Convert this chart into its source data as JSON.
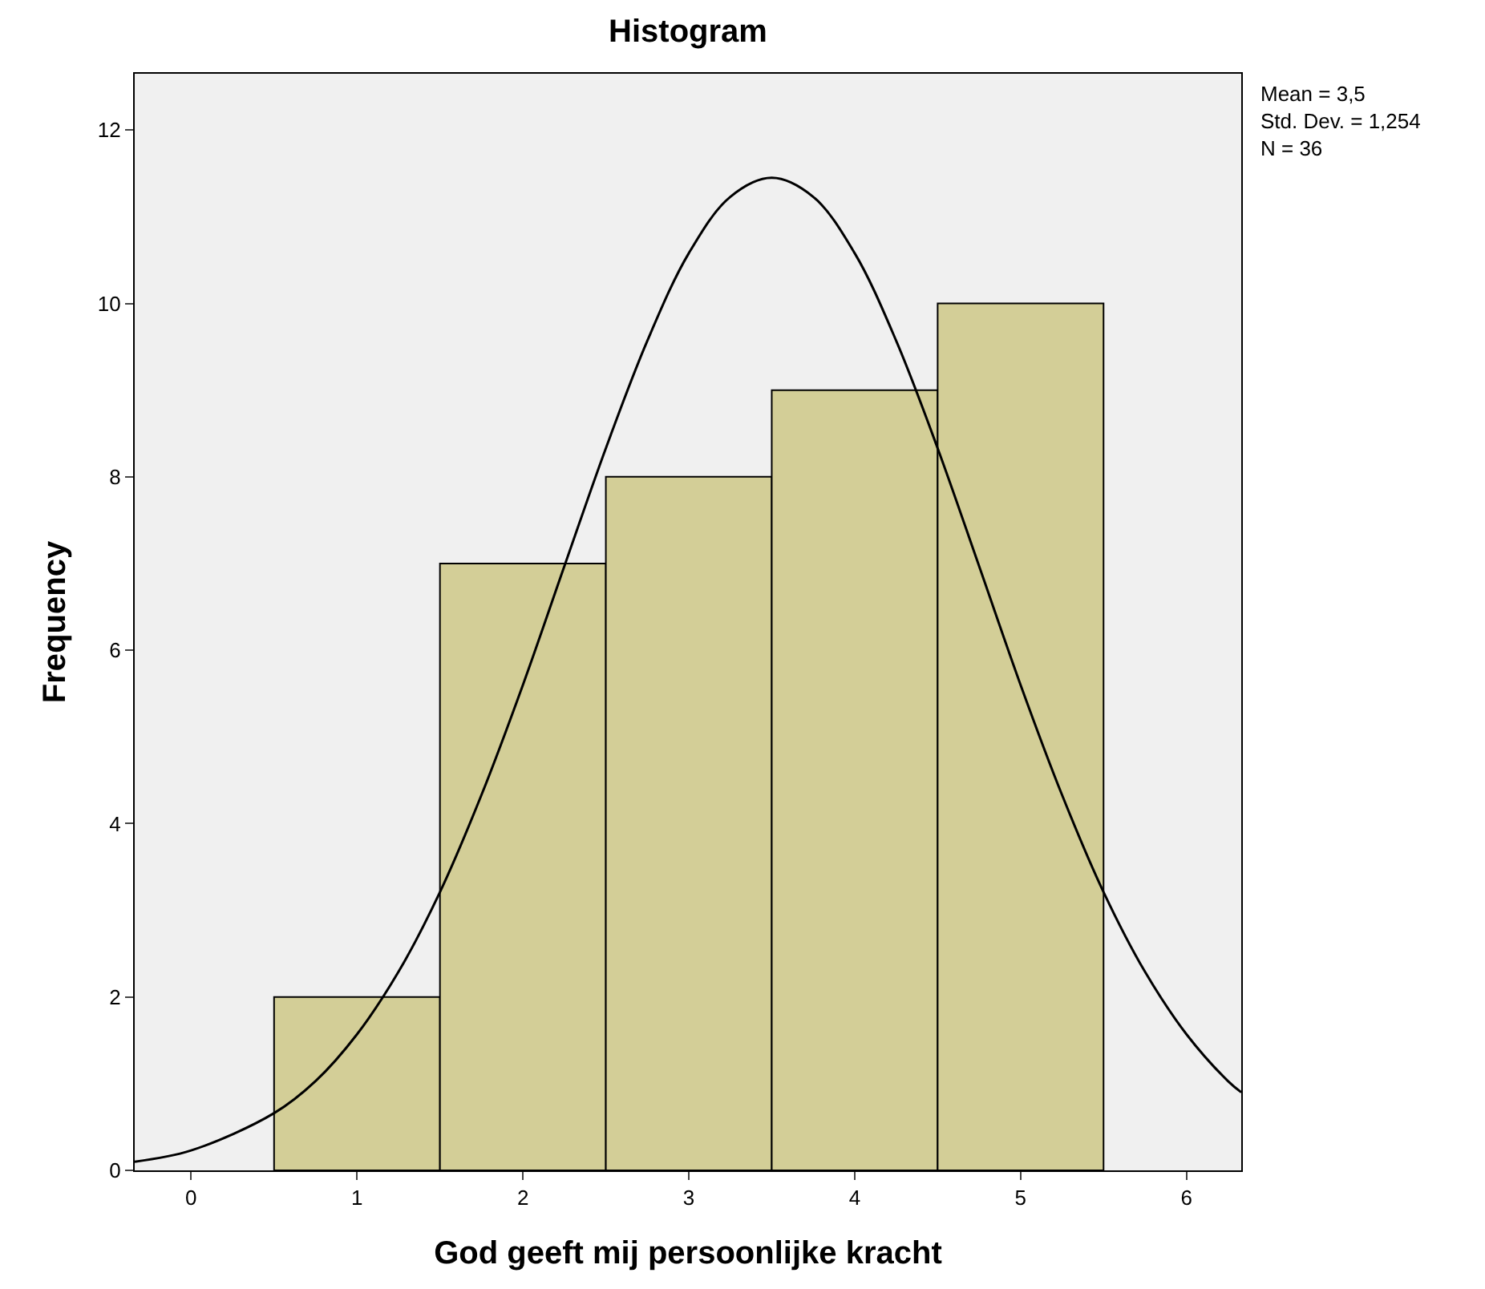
{
  "chart_data": {
    "type": "histogram",
    "title": "Histogram",
    "xlabel": "God geeft mij persoonlijke kracht",
    "ylabel": "Frequency",
    "bins": [
      0.5,
      1.5,
      2.5,
      3.5,
      4.5,
      5.5
    ],
    "values": [
      2,
      7,
      8,
      9,
      10
    ],
    "color": "#d3ce97",
    "series": [
      {
        "type": "line",
        "color": "#000000",
        "x": [
          -0.34,
          0,
          0.5,
          0.75,
          1,
          1.25,
          1.5,
          1.75,
          2,
          2.25,
          2.5,
          2.75,
          3,
          3.25,
          3.5,
          3.75,
          4,
          4.25,
          4.5,
          4.75,
          5,
          5.25,
          5.5,
          5.75,
          6,
          6.25,
          6.33
        ],
        "values": [
          0.1,
          0.23,
          0.66,
          1.03,
          1.57,
          2.29,
          3.21,
          4.33,
          5.6,
          6.97,
          8.33,
          9.57,
          10.58,
          11.23,
          11.45,
          11.23,
          10.58,
          9.57,
          8.33,
          6.97,
          5.6,
          4.33,
          3.21,
          2.29,
          1.57,
          1.03,
          0.9
        ]
      }
    ],
    "xlim": [
      -0.34,
      6.33
    ],
    "xticks": [
      0,
      1,
      2,
      3,
      4,
      5,
      6
    ],
    "ylim": [
      0,
      12.65
    ],
    "yticks": [
      0,
      2,
      4,
      6,
      8,
      10,
      12
    ],
    "grid": false,
    "annotations": [
      "Mean = 3,5",
      "Std. Dev. = 1,254",
      "N = 36"
    ]
  }
}
